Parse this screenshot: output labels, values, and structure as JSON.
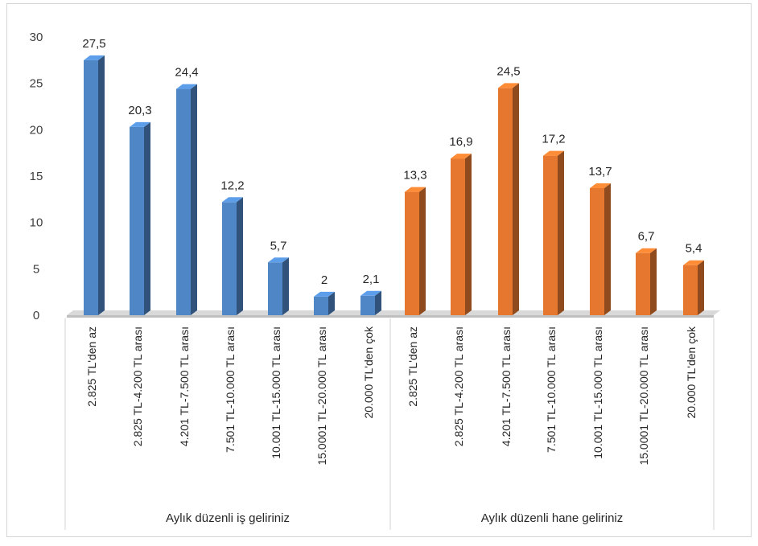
{
  "chart_data": {
    "type": "bar",
    "title": "",
    "xlabel": "",
    "ylabel": "",
    "ylim": [
      0,
      30
    ],
    "yticks": [
      0,
      5,
      10,
      15,
      20,
      25,
      30
    ],
    "grid": false,
    "legend": "none",
    "style": "3d-columns",
    "groups": [
      {
        "name": "Aylık düzenli iş geliriniz",
        "color": "#4f86c6",
        "categories": [
          "2.825 TL'den az",
          "2.825 TL-4.200 TL arası",
          "4.201 TL-7.500 TL arası",
          "7.501 TL-10.000 TL arası",
          "10.001 TL-15.000 TL arası",
          "15.0001 TL-20.000 TL arası",
          "20.000 TL'den çok"
        ],
        "values": [
          27.5,
          20.3,
          24.4,
          12.2,
          5.7,
          2,
          2.1
        ],
        "value_labels": [
          "27,5",
          "20,3",
          "24,4",
          "12,2",
          "5,7",
          "2",
          "2,1"
        ]
      },
      {
        "name": "Aylık düzenli hane geliriniz",
        "color": "#e6772e",
        "categories": [
          "2.825 TL'den az",
          "2.825 TL-4.200 TL arası",
          "4.201 TL-7.500 TL arası",
          "7.501 TL-10.000 TL arası",
          "10.001 TL-15.000 TL arası",
          "15.0001 TL-20.000 TL arası",
          "20.000 TL'den çok"
        ],
        "values": [
          13.3,
          16.9,
          24.5,
          17.2,
          13.7,
          6.7,
          5.4
        ],
        "value_labels": [
          "13,3",
          "16,9",
          "24,5",
          "17,2",
          "13,7",
          "6,7",
          "5,4"
        ]
      }
    ]
  }
}
